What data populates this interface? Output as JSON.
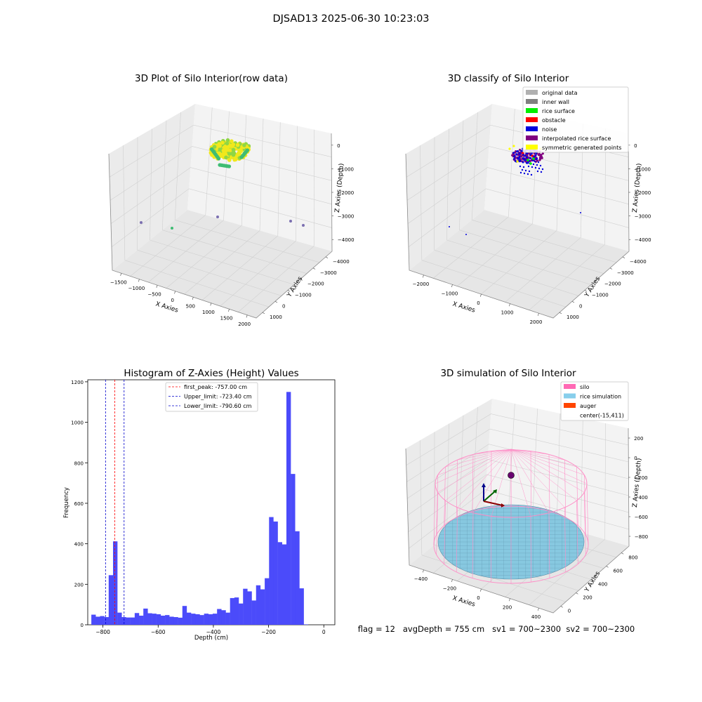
{
  "figure": {
    "suptitle": "DJSAD13 2025-06-30 10:23:03",
    "footer": "flag = 12   avgDepth = 755 cm   sv1 = 700~2300  sv2 = 700~2300"
  },
  "chart_data": [
    {
      "type": "scatter",
      "projection": "3d",
      "title": "3D Plot of Silo Interior(row data)",
      "xlabel": "X Axies",
      "ylabel": "Y Axies",
      "zlabel": "Z Axies (Depth)",
      "x_ticks": [
        "−1500",
        "−1000",
        "−500",
        "0",
        "500",
        "1000",
        "1500",
        "2000"
      ],
      "y_ticks": [
        "−4000",
        "−3000",
        "−2000",
        "−1000",
        "0",
        "1000"
      ],
      "z_ticks": [
        "−4000",
        "−3000",
        "−2000",
        "−1000",
        "0"
      ],
      "grid": true,
      "colors": {
        "high": "#f0e81c",
        "mid": "#8fd644",
        "low": "#3fbc73",
        "outlier": "#7b6fb0"
      }
    },
    {
      "type": "scatter",
      "projection": "3d",
      "title": "3D classify of Silo Interior",
      "xlabel": "X Axies",
      "ylabel": "Y Axies",
      "zlabel": "Z Axies (Depth)",
      "x_ticks": [
        "−2000",
        "−1000",
        "0",
        "1000",
        "2000"
      ],
      "y_ticks": [
        "−4000",
        "−3000",
        "−2000",
        "−1000",
        "0",
        "1000"
      ],
      "z_ticks": [
        "−4000",
        "−3000",
        "−2000",
        "−1000",
        "0"
      ],
      "grid": true,
      "legend_position": "top-right",
      "legend": [
        {
          "label": "original data",
          "color": "#b0b0b0"
        },
        {
          "label": "inner wall",
          "color": "#808080"
        },
        {
          "label": "rice surface",
          "color": "#00ee00"
        },
        {
          "label": "obstacle",
          "color": "#ff0000"
        },
        {
          "label": "noise",
          "color": "#0000dd"
        },
        {
          "label": "interpolated rice surface",
          "color": "#800080"
        },
        {
          "label": "symmetric generated points",
          "color": "#ffff00"
        }
      ]
    },
    {
      "type": "bar",
      "subtype": "histogram",
      "title": "Histogram of Z-Axies (Height) Values",
      "xlabel": "Depth (cm)",
      "ylabel": "Frequency",
      "xlim": [
        -855,
        40
      ],
      "ylim": [
        0,
        1210
      ],
      "x_ticks": [
        -800,
        -600,
        -400,
        -200,
        0
      ],
      "x_tick_labels": [
        "−800",
        "−600",
        "−400",
        "−200",
        "0"
      ],
      "y_ticks": [
        0,
        200,
        400,
        600,
        800,
        1000,
        1200
      ],
      "bar_color": "#4b4bfa",
      "bin_start": -842,
      "bin_width": 15.7,
      "values": [
        50,
        40,
        43,
        38,
        245,
        412,
        60,
        38,
        36,
        36,
        58,
        45,
        80,
        57,
        55,
        52,
        45,
        48,
        40,
        38,
        35,
        93,
        60,
        55,
        52,
        48,
        55,
        52,
        55,
        78,
        72,
        60,
        132,
        135,
        105,
        178,
        165,
        120,
        195,
        175,
        230,
        532,
        510,
        408,
        397,
        1150,
        745,
        462,
        180,
        2
      ],
      "grid": false,
      "legend_position": "top-center",
      "vlines": [
        {
          "label": "first_peak: -757.00 cm",
          "x": -757.0,
          "color": "#ff0000"
        },
        {
          "label": "Upper_limit: -723.40 cm",
          "x": -723.4,
          "color": "#0000cc"
        },
        {
          "label": "Lower_limit: -790.60 cm",
          "x": -790.6,
          "color": "#0000cc"
        }
      ]
    },
    {
      "type": "surface",
      "projection": "3d",
      "title": "3D simulation of Silo Interior",
      "xlabel": "X Axies",
      "ylabel": "Y Axies",
      "zlabel": "Z Axies (Depth)",
      "x_ticks": [
        "−400",
        "−200",
        "0",
        "200",
        "400"
      ],
      "y_ticks": [
        "0",
        "200",
        "400",
        "600",
        "800"
      ],
      "z_ticks": [
        "−800",
        "−600",
        "−400",
        "−200",
        "0",
        "200"
      ],
      "grid": true,
      "legend_position": "top-right",
      "legend": [
        {
          "label": "silo",
          "color": "#ff69b4"
        },
        {
          "label": "rice simulation",
          "color": "#87ceeb"
        },
        {
          "label": "auger",
          "color": "#ff4500"
        },
        {
          "label": "center(-15,411)",
          "color": "#ffffff"
        }
      ],
      "colors": {
        "silo_wire": "#ff8cc6",
        "rice": "#87c8e0",
        "rice_grid": "#5a8fa8",
        "auger": "#6a0070"
      }
    }
  ]
}
